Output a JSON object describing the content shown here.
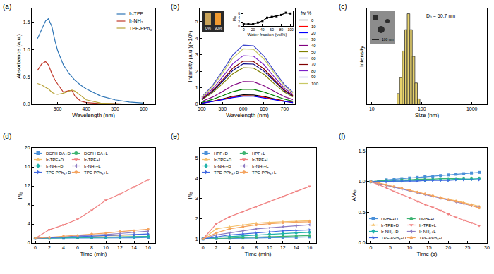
{
  "chart_data": [
    {
      "title": "(a)",
      "type": "line",
      "x_label": "Wavelength (nm)",
      "y_label": "Absorbance (a.u.)",
      "x": [
        230,
        245,
        258,
        268,
        280,
        290,
        300,
        320,
        340,
        350,
        360,
        380,
        400,
        450,
        500,
        550,
        600
      ],
      "xlim": [
        210,
        640
      ],
      "xticks": [
        300,
        400,
        500,
        600
      ],
      "ylim": [
        0,
        1.75
      ],
      "yticks": [
        {
          "value": 0,
          "label": "0.0"
        },
        0.5,
        {
          "value": 1,
          "label": "1.0"
        },
        1.5
      ],
      "legend": "top right",
      "series": [
        {
          "name": "Ir-TPE",
          "color": "#2e75b6",
          "values": [
            1.2,
            1.38,
            1.52,
            1.56,
            1.42,
            1.18,
            0.98,
            0.72,
            0.56,
            0.5,
            0.44,
            0.35,
            0.28,
            0.15,
            0.08,
            0.04,
            0.02
          ]
        },
        {
          "name": "Ir-NH₂",
          "color": "#c0392b",
          "values": [
            0.62,
            0.74,
            0.78,
            0.72,
            0.56,
            0.45,
            0.37,
            0.22,
            0.25,
            0.25,
            0.15,
            0.06,
            0.03,
            0.01,
            0.01,
            0,
            0
          ]
        },
        {
          "name": "TPE-PPh₃",
          "color": "#b8a338",
          "values": [
            0.38,
            0.35,
            0.31,
            0.28,
            0.22,
            0.19,
            0.18,
            0.2,
            0.24,
            0.26,
            0.24,
            0.16,
            0.08,
            0.02,
            0.01,
            0,
            0
          ]
        }
      ]
    },
    {
      "title": "(b)",
      "type": "line",
      "x_label": "Wavelength (nm)",
      "y_label": "Intensity (a.u.)(×10⁵)",
      "x": [
        500,
        525,
        550,
        575,
        600,
        625,
        650,
        675,
        700,
        720
      ],
      "xlim": [
        495,
        725
      ],
      "xticks": [
        500,
        550,
        600,
        650,
        700
      ],
      "ylim": [
        0,
        5.8
      ],
      "yticks": [
        0,
        1,
        2,
        3,
        4,
        5
      ],
      "legend": "right",
      "legend_title": "fw %",
      "annotations": [
        "0%",
        "90%"
      ],
      "series": [
        {
          "name": "0",
          "color": "#000000",
          "values": [
            0.07,
            0.17,
            0.32,
            0.48,
            0.57,
            0.56,
            0.46,
            0.32,
            0.19,
            0.12
          ]
        },
        {
          "name": "10",
          "color": "#ff0000",
          "values": [
            0.06,
            0.16,
            0.29,
            0.43,
            0.51,
            0.5,
            0.42,
            0.29,
            0.17,
            0.1
          ]
        },
        {
          "name": "20",
          "color": "#0000ff",
          "values": [
            0.06,
            0.15,
            0.27,
            0.4,
            0.48,
            0.48,
            0.39,
            0.27,
            0.16,
            0.1
          ]
        },
        {
          "name": "30",
          "color": "#008000",
          "values": [
            0.11,
            0.28,
            0.51,
            0.76,
            0.91,
            0.9,
            0.74,
            0.51,
            0.3,
            0.19
          ]
        },
        {
          "name": "40",
          "color": "#800080",
          "values": [
            0.17,
            0.42,
            0.77,
            1.15,
            1.37,
            1.36,
            1.12,
            0.77,
            0.45,
            0.28
          ]
        },
        {
          "name": "50",
          "color": "#808000",
          "values": [
            0.27,
            0.68,
            1.24,
            1.85,
            2.21,
            2.19,
            1.81,
            1.24,
            0.72,
            0.45
          ]
        },
        {
          "name": "60",
          "color": "#000080",
          "values": [
            0.3,
            0.75,
            1.38,
            2.05,
            2.45,
            2.43,
            2.0,
            1.38,
            0.8,
            0.5
          ]
        },
        {
          "name": "70",
          "color": "#800000",
          "values": [
            0.32,
            0.8,
            1.47,
            2.19,
            2.62,
            2.59,
            2.14,
            1.47,
            0.85,
            0.53
          ]
        },
        {
          "name": "80",
          "color": "#7b20c8",
          "values": [
            0.36,
            0.9,
            1.65,
            2.46,
            2.94,
            2.91,
            2.4,
            1.65,
            0.96,
            0.6
          ]
        },
        {
          "name": "90",
          "color": "#3f48cc",
          "values": [
            0.44,
            1.1,
            2.01,
            2.99,
            3.58,
            3.54,
            2.92,
            2.01,
            1.17,
            0.73
          ]
        },
        {
          "name": "100",
          "color": "#c8c864",
          "values": [
            0.41,
            1.03,
            1.88,
            2.8,
            3.35,
            3.32,
            2.74,
            1.88,
            1.09,
            0.68
          ]
        }
      ],
      "inset": {
        "type": "line",
        "x_label": "Water fraction (vol%)",
        "y_label": "I/I₀",
        "x": [
          0,
          10,
          20,
          30,
          40,
          50,
          60,
          70,
          80,
          90,
          100
        ],
        "xlim": [
          -5,
          105
        ],
        "xticks": [
          0,
          20,
          40,
          60,
          80,
          100
        ],
        "ylim": [
          0,
          7
        ],
        "yticks": [
          0,
          2,
          4,
          6
        ],
        "series": [
          {
            "color": "#000000",
            "marker": "square",
            "values": [
              1,
              0.9,
              0.85,
              1.6,
              2.4,
              3.9,
              4.3,
              4.6,
              5.2,
              6.3,
              5.9
            ]
          }
        ]
      }
    },
    {
      "title": "(c)",
      "type": "histogram",
      "x_label": "Size (nm)",
      "y_label": "Intensity",
      "log": "x",
      "bins": [
        32,
        36,
        40.5,
        45.5,
        51,
        57.5,
        64.5,
        72.5,
        81.5,
        91.5
      ],
      "values": [
        2,
        5,
        10,
        14,
        17,
        14,
        9,
        4,
        1
      ],
      "color": "#e8d36c",
      "xlim": [
        8,
        2000
      ],
      "xticks": [
        10,
        100,
        1000
      ],
      "ylim": [
        0,
        18
      ],
      "tick_labels": "x",
      "annotations": [
        "100 nm",
        "Dₕ = 50.7 nm"
      ]
    },
    {
      "title": "(d)",
      "type": "line",
      "x_label": "Time (min)",
      "y_label": "I/I₀",
      "x": [
        0,
        2,
        4,
        6,
        8,
        10,
        12,
        14,
        16
      ],
      "xlim": [
        -0.5,
        17
      ],
      "xticks": [
        0,
        2,
        4,
        6,
        8,
        10,
        12,
        14,
        16
      ],
      "ylim": [
        0,
        20
      ],
      "yticks": [
        0,
        4,
        8,
        12,
        16,
        20
      ],
      "legend": "top left",
      "series": [
        {
          "name": "DCFH-DA+D",
          "color": "#4a90d9",
          "marker": "square",
          "values": [
            1,
            1,
            1,
            1.05,
            1.05,
            1.1,
            1.1,
            1.1,
            1.15
          ]
        },
        {
          "name": "DCFH-DA+L",
          "color": "#3cb371",
          "marker": "circle",
          "values": [
            1,
            1.05,
            1.1,
            1.15,
            1.2,
            1.25,
            1.3,
            1.35,
            1.4
          ]
        },
        {
          "name": "Ir-TPE+D",
          "color": "#f5c16c",
          "marker": "triangle-up",
          "values": [
            1,
            1.1,
            1.2,
            1.3,
            1.4,
            1.5,
            1.6,
            1.7,
            1.8
          ]
        },
        {
          "name": "Ir-TPE+L",
          "color": "#f08080",
          "marker": "triangle-down",
          "values": [
            1,
            2.8,
            3.8,
            5,
            6.9,
            9,
            10.3,
            11.8,
            13.3
          ]
        },
        {
          "name": "Ir-NH₂+D",
          "color": "#20b2aa",
          "marker": "diamond",
          "values": [
            1,
            1.05,
            1.1,
            1.15,
            1.2,
            1.2,
            1.25,
            1.3,
            1.35
          ]
        },
        {
          "name": "Ir-NH₂+L",
          "color": "#8e7cc3",
          "marker": "triangle-left",
          "values": [
            1,
            1.1,
            1.3,
            1.5,
            1.6,
            1.8,
            2.0,
            2.2,
            2.5
          ]
        },
        {
          "name": "TPE-PPh₃+D",
          "color": "#4169e1",
          "marker": "triangle-right",
          "values": [
            1,
            1.1,
            1.2,
            1.3,
            1.4,
            1.5,
            1.6,
            1.7,
            1.9
          ]
        },
        {
          "name": "TPE-PPh₃+L",
          "color": "#f4a460",
          "marker": "hexagon",
          "values": [
            1,
            1.2,
            1.4,
            1.6,
            1.9,
            2.1,
            2.4,
            2.6,
            2.9
          ]
        }
      ]
    },
    {
      "title": "(e)",
      "type": "line",
      "x_label": "Time (min)",
      "y_label": "I/I₀",
      "x": [
        0,
        2,
        4,
        6,
        8,
        10,
        12,
        14,
        16
      ],
      "xlim": [
        -0.5,
        17
      ],
      "xticks": [
        0,
        2,
        4,
        6,
        8,
        10,
        12,
        14,
        16
      ],
      "ylim": [
        0.8,
        5.5
      ],
      "yticks": [
        1,
        2,
        3,
        4,
        5
      ],
      "legend": "top left",
      "series": [
        {
          "name": "HPF+D",
          "color": "#4a90d9",
          "marker": "square",
          "values": [
            1,
            1.02,
            1.03,
            1.04,
            1.05,
            1.06,
            1.07,
            1.08,
            1.1
          ]
        },
        {
          "name": "HPF+L",
          "color": "#3cb371",
          "marker": "circle",
          "values": [
            1,
            1.03,
            1.05,
            1.07,
            1.09,
            1.11,
            1.13,
            1.15,
            1.17
          ]
        },
        {
          "name": "Ir-TPE+D",
          "color": "#f5c16c",
          "marker": "triangle-up",
          "values": [
            1,
            1.5,
            1.6,
            1.7,
            1.78,
            1.82,
            1.85,
            1.87,
            1.9
          ]
        },
        {
          "name": "Ir-TPE+L",
          "color": "#f08080",
          "marker": "triangle-down",
          "values": [
            1,
            1.75,
            2.1,
            2.35,
            2.6,
            2.85,
            3.1,
            3.35,
            3.6
          ]
        },
        {
          "name": "Ir-NH₂+D",
          "color": "#20b2aa",
          "marker": "diamond",
          "values": [
            1,
            1.08,
            1.12,
            1.16,
            1.2,
            1.24,
            1.27,
            1.3,
            1.33
          ]
        },
        {
          "name": "Ir-NH₂+L",
          "color": "#8e7cc3",
          "marker": "triangle-left",
          "values": [
            1,
            1.2,
            1.3,
            1.4,
            1.5,
            1.55,
            1.6,
            1.65,
            1.7
          ]
        },
        {
          "name": "TPE-PPh₃+D",
          "color": "#4169e1",
          "marker": "triangle-right",
          "values": [
            1,
            1.1,
            1.2,
            1.25,
            1.3,
            1.35,
            1.4,
            1.42,
            1.45
          ]
        },
        {
          "name": "TPE-PPh₃+L",
          "color": "#f4a460",
          "marker": "hexagon",
          "values": [
            1,
            1.3,
            1.5,
            1.6,
            1.7,
            1.75,
            1.8,
            1.83,
            1.85
          ]
        }
      ]
    },
    {
      "title": "(f)",
      "type": "line",
      "x_label": "Time (s)",
      "y_label": "A/A₀",
      "x": [
        0,
        2,
        4,
        6,
        8,
        10,
        12,
        14,
        16,
        18,
        20,
        22,
        24,
        26,
        28
      ],
      "xlim": [
        -1,
        30
      ],
      "xticks": [
        0,
        5,
        10,
        15,
        20,
        25,
        30
      ],
      "ylim": [
        0,
        1.55
      ],
      "yticks": [
        {
          "value": 0,
          "label": "0.0"
        },
        0.5,
        {
          "value": 1,
          "label": "1.0"
        },
        1.5
      ],
      "legend": "bottom left",
      "series": [
        {
          "name": "DPBF+D",
          "color": "#4a90d9",
          "marker": "square",
          "values": [
            1.0,
            1.01,
            1.03,
            1.04,
            1.05,
            1.06,
            1.07,
            1.08,
            1.09,
            1.1,
            1.11,
            1.12,
            1.13,
            1.14,
            1.15
          ]
        },
        {
          "name": "DPBF+L",
          "color": "#3cb371",
          "marker": "circle",
          "values": [
            1.0,
            1.01,
            1.02,
            1.02,
            1.03,
            1.03,
            1.04,
            1.04,
            1.04,
            1.05,
            1.05,
            1.05,
            1.06,
            1.06,
            1.06
          ]
        },
        {
          "name": "Ir-TPE+D",
          "color": "#f5c16c",
          "marker": "triangle-up",
          "values": [
            1.0,
            0.97,
            0.94,
            0.91,
            0.89,
            0.86,
            0.83,
            0.8,
            0.77,
            0.74,
            0.71,
            0.69,
            0.66,
            0.63,
            0.6
          ]
        },
        {
          "name": "Ir-TPE+L",
          "color": "#f08080",
          "marker": "triangle-down",
          "values": [
            1.0,
            0.95,
            0.9,
            0.84,
            0.79,
            0.74,
            0.68,
            0.63,
            0.58,
            0.53,
            0.47,
            0.42,
            0.37,
            0.33,
            0.28
          ]
        },
        {
          "name": "Ir-NH₂+D",
          "color": "#20b2aa",
          "marker": "diamond",
          "values": [
            1.0,
            1.0,
            1.01,
            1.01,
            1.01,
            1.02,
            1.02,
            1.02,
            1.03,
            1.03,
            1.03,
            1.04,
            1.04,
            1.04,
            1.05
          ]
        },
        {
          "name": "Ir-NH₂+L",
          "color": "#8e7cc3",
          "marker": "triangle-left",
          "values": [
            1.0,
            0.97,
            0.94,
            0.91,
            0.88,
            0.85,
            0.82,
            0.79,
            0.76,
            0.73,
            0.7,
            0.67,
            0.64,
            0.61,
            0.58
          ]
        },
        {
          "name": "TPE-PPh₃+D",
          "color": "#4169e1",
          "marker": "triangle-right",
          "values": [
            1.0,
            1.0,
            1.0,
            1.01,
            1.01,
            1.01,
            1.01,
            1.02,
            1.02,
            1.02,
            1.02,
            1.03,
            1.03,
            1.03,
            1.03
          ]
        },
        {
          "name": "TPE-PPh₃+L",
          "color": "#f4a460",
          "marker": "hexagon",
          "values": [
            1.0,
            0.98,
            0.95,
            0.92,
            0.89,
            0.86,
            0.83,
            0.8,
            0.77,
            0.74,
            0.71,
            0.68,
            0.65,
            0.61,
            0.57
          ]
        }
      ]
    }
  ]
}
